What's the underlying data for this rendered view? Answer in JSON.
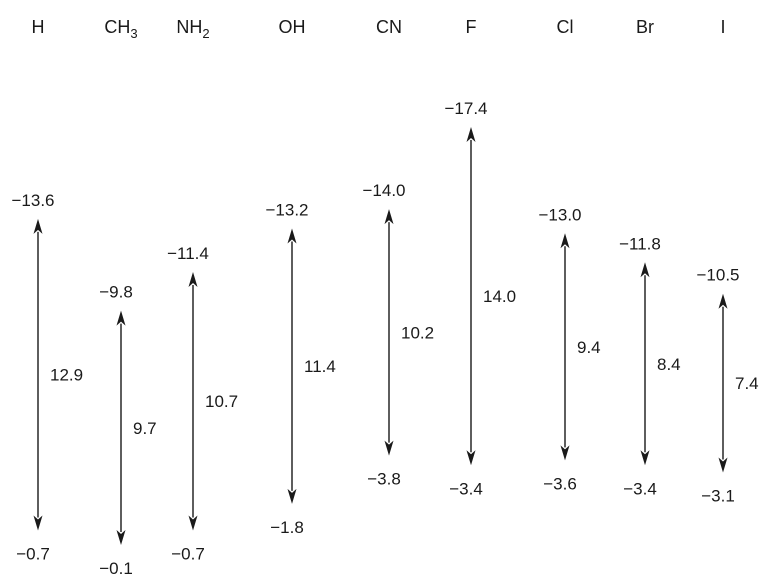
{
  "chart_data": {
    "type": "range",
    "categories": [
      {
        "label": "H",
        "sub": ""
      },
      {
        "label": "CH",
        "sub": "3"
      },
      {
        "label": "NH",
        "sub": "2"
      },
      {
        "label": "OH",
        "sub": ""
      },
      {
        "label": "CN",
        "sub": ""
      },
      {
        "label": "F",
        "sub": ""
      },
      {
        "label": "Cl",
        "sub": ""
      },
      {
        "label": "Br",
        "sub": ""
      },
      {
        "label": "I",
        "sub": ""
      }
    ],
    "top_values": [
      -13.6,
      -9.8,
      -11.4,
      -13.2,
      -14.0,
      -17.4,
      -13.0,
      -11.8,
      -10.5
    ],
    "bottom_values": [
      -0.7,
      -0.1,
      -0.7,
      -1.8,
      -3.8,
      -3.4,
      -3.6,
      -3.4,
      -3.1
    ],
    "top_labels": [
      "−13.6",
      "−9.8",
      "−11.4",
      "−13.2",
      "−14.0",
      "−17.4",
      "−13.0",
      "−11.8",
      "−10.5"
    ],
    "bottom_labels": [
      "−0.7",
      "−0.1",
      "−0.7",
      "−1.8",
      "−3.8",
      "−3.4",
      "−3.6",
      "−3.4",
      "−3.1"
    ],
    "differences": [
      12.9,
      9.7,
      10.7,
      11.4,
      10.2,
      14.0,
      9.4,
      8.4,
      7.4
    ],
    "difference_labels": [
      "12.9",
      "9.7",
      "10.7",
      "11.4",
      "10.2",
      "14.0",
      "9.4",
      "8.4",
      "7.4"
    ],
    "title": "",
    "xlabel": "",
    "ylabel": "",
    "ylim": [
      -17.4,
      -0.1
    ],
    "grid": false
  }
}
